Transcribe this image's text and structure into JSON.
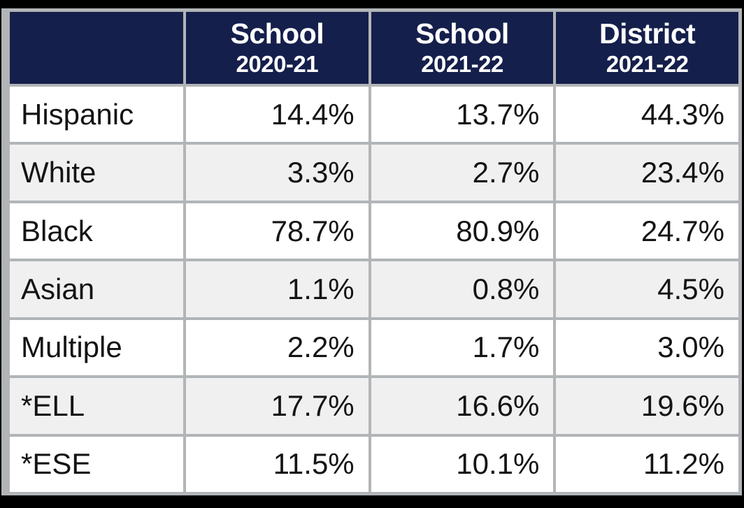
{
  "table": {
    "description": "School vs district demographics percentage table",
    "colors": {
      "header_bg": "#151F4B",
      "header_text": "#FFFFFF",
      "grid_line": "#B2B5B7",
      "row_bg": "#FFFFFF",
      "row_alt_bg": "#F0F0F0",
      "body_text": "#141414",
      "canvas_bg": "#000000"
    },
    "header": {
      "corner": "",
      "cols": [
        {
          "line1": "School",
          "line2": "2020-21"
        },
        {
          "line1": "School",
          "line2": "2021-22"
        },
        {
          "line1": "District",
          "line2": "2021-22"
        }
      ]
    },
    "rows": [
      {
        "label": "Hispanic",
        "values": [
          "14.4%",
          "13.7%",
          "44.3%"
        ]
      },
      {
        "label": "White",
        "values": [
          "3.3%",
          "2.7%",
          "23.4%"
        ]
      },
      {
        "label": "Black",
        "values": [
          "78.7%",
          "80.9%",
          "24.7%"
        ]
      },
      {
        "label": "Asian",
        "values": [
          "1.1%",
          "0.8%",
          "4.5%"
        ]
      },
      {
        "label": "Multiple",
        "values": [
          "2.2%",
          "1.7%",
          "3.0%"
        ]
      },
      {
        "label": "*ELL",
        "values": [
          "17.7%",
          "16.6%",
          "19.6%"
        ]
      },
      {
        "label": "*ESE",
        "values": [
          "11.5%",
          "10.1%",
          "11.2%"
        ]
      }
    ]
  }
}
